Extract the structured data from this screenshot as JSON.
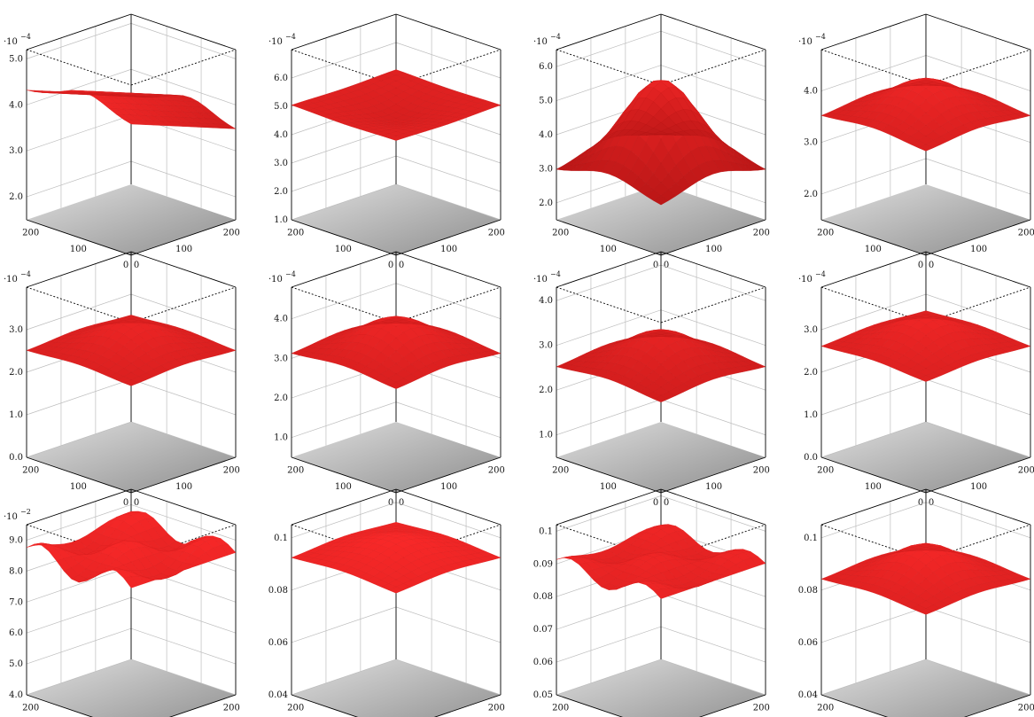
{
  "colors": {
    "surface_light": "#ff2a2a",
    "surface_mid": "#d40000",
    "surface_dark": "#6b0000",
    "axis": "#000000",
    "grid": "#bdbdbd",
    "floor_light": "#d8d8d8",
    "floor_dark": "#7a7a7a"
  },
  "chart_data": [
    {
      "type": "surface3d",
      "multiplier": "·10",
      "exponent": "−4",
      "z_ticks": [
        "2.0",
        "3.0",
        "4.0",
        "5.0"
      ],
      "zlim": [
        1.5,
        5.2
      ],
      "x_ticks": [
        "0",
        "100",
        "200"
      ],
      "y_ticks": [
        "0",
        "100",
        "200"
      ],
      "shape": "ridge",
      "peak": 4.7,
      "rim": 4.3,
      "min": 1.8
    },
    {
      "type": "surface3d",
      "multiplier": "·10",
      "exponent": "−4",
      "z_ticks": [
        "1.0",
        "2.0",
        "3.0",
        "4.0",
        "5.0",
        "6.0"
      ],
      "zlim": [
        1.0,
        7.0
      ],
      "x_ticks": [
        "0",
        "100",
        "200"
      ],
      "y_ticks": [
        "0",
        "100",
        "200"
      ],
      "shape": "bowl",
      "peak": 5.1,
      "rim": 5.0,
      "min": 1.9
    },
    {
      "type": "surface3d",
      "multiplier": "·10",
      "exponent": "−4",
      "z_ticks": [
        "2.0",
        "3.0",
        "4.0",
        "5.0",
        "6.0"
      ],
      "zlim": [
        1.5,
        6.5
      ],
      "x_ticks": [
        "0",
        "100",
        "200"
      ],
      "y_ticks": [
        "0",
        "100",
        "200"
      ],
      "shape": "dome",
      "peak": 5.6,
      "rim": 2.9,
      "min": 1.9
    },
    {
      "type": "surface3d",
      "multiplier": "·10",
      "exponent": "−4",
      "z_ticks": [
        "2.0",
        "3.0",
        "4.0"
      ],
      "zlim": [
        1.5,
        4.8
      ],
      "x_ticks": [
        "0",
        "100",
        "200"
      ],
      "y_ticks": [
        "0",
        "100",
        "200"
      ],
      "shape": "dome",
      "peak": 4.2,
      "rim": 3.5,
      "min": 1.8
    },
    {
      "type": "surface3d",
      "multiplier": "·10",
      "exponent": "−4",
      "z_ticks": [
        "0.0",
        "1.0",
        "2.0",
        "3.0"
      ],
      "zlim": [
        0.0,
        4.0
      ],
      "x_ticks": [
        "0",
        "100",
        "200"
      ],
      "y_ticks": [
        "0",
        "100",
        "200"
      ],
      "shape": "twin",
      "peak": 3.2,
      "rim": 2.5,
      "min": 0.3
    },
    {
      "type": "surface3d",
      "multiplier": "·10",
      "exponent": "−4",
      "z_ticks": [
        "1.0",
        "2.0",
        "3.0",
        "4.0"
      ],
      "zlim": [
        0.5,
        4.8
      ],
      "x_ticks": [
        "0",
        "100",
        "200"
      ],
      "y_ticks": [
        "0",
        "100",
        "200"
      ],
      "shape": "dome",
      "peak": 4.0,
      "rim": 3.1,
      "min": 0.8
    },
    {
      "type": "surface3d",
      "multiplier": "·10",
      "exponent": "−4",
      "z_ticks": [
        "1.0",
        "2.0",
        "3.0",
        "4.0"
      ],
      "zlim": [
        0.5,
        4.3
      ],
      "x_ticks": [
        "0",
        "100",
        "200"
      ],
      "y_ticks": [
        "0",
        "100",
        "200"
      ],
      "shape": "dome",
      "peak": 3.3,
      "rim": 2.5,
      "min": 0.8
    },
    {
      "type": "surface3d",
      "multiplier": "·10",
      "exponent": "−4",
      "z_ticks": [
        "0.0",
        "1.0",
        "2.0",
        "3.0"
      ],
      "zlim": [
        0.0,
        4.0
      ],
      "x_ticks": [
        "0",
        "100",
        "200"
      ],
      "y_ticks": [
        "0",
        "100",
        "200"
      ],
      "shape": "twin",
      "peak": 3.3,
      "rim": 2.6,
      "min": 0.2
    },
    {
      "type": "surface3d",
      "multiplier": "·10",
      "exponent": "−2",
      "z_ticks": [
        "4.0",
        "5.0",
        "6.0",
        "7.0",
        "8.0",
        "9.0"
      ],
      "zlim": [
        4.0,
        9.5
      ],
      "x_ticks": [
        "0",
        "100",
        "200"
      ],
      "y_ticks": [
        "0",
        "100",
        "200"
      ],
      "shape": "plateau",
      "peak": 9.0,
      "rim": 8.0,
      "min": 4.7
    },
    {
      "type": "surface3d",
      "multiplier": "",
      "exponent": "",
      "z_ticks": [
        "0.04",
        "0.06",
        "0.08",
        "0.1"
      ],
      "zlim": [
        0.04,
        0.105
      ],
      "x_ticks": [
        "0",
        "100",
        "200"
      ],
      "y_ticks": [
        "0",
        "100",
        "200"
      ],
      "shape": "funnel",
      "peak": 0.1,
      "rim": 0.092,
      "min": 0.046
    },
    {
      "type": "surface3d",
      "multiplier": "",
      "exponent": "",
      "z_ticks": [
        "0.05",
        "0.06",
        "0.07",
        "0.08",
        "0.09",
        "0.1"
      ],
      "zlim": [
        0.05,
        0.102
      ],
      "x_ticks": [
        "0",
        "100",
        "200"
      ],
      "y_ticks": [
        "0",
        "100",
        "200"
      ],
      "shape": "plateau",
      "peak": 0.093,
      "rim": 0.086,
      "min": 0.053
    },
    {
      "type": "surface3d",
      "multiplier": "",
      "exponent": "",
      "z_ticks": [
        "0.04",
        "0.06",
        "0.08",
        "0.1"
      ],
      "zlim": [
        0.04,
        0.105
      ],
      "x_ticks": [
        "0",
        "100",
        "200"
      ],
      "y_ticks": [
        "0",
        "100",
        "200"
      ],
      "shape": "twin",
      "peak": 0.097,
      "rim": 0.084,
      "min": 0.046
    }
  ]
}
